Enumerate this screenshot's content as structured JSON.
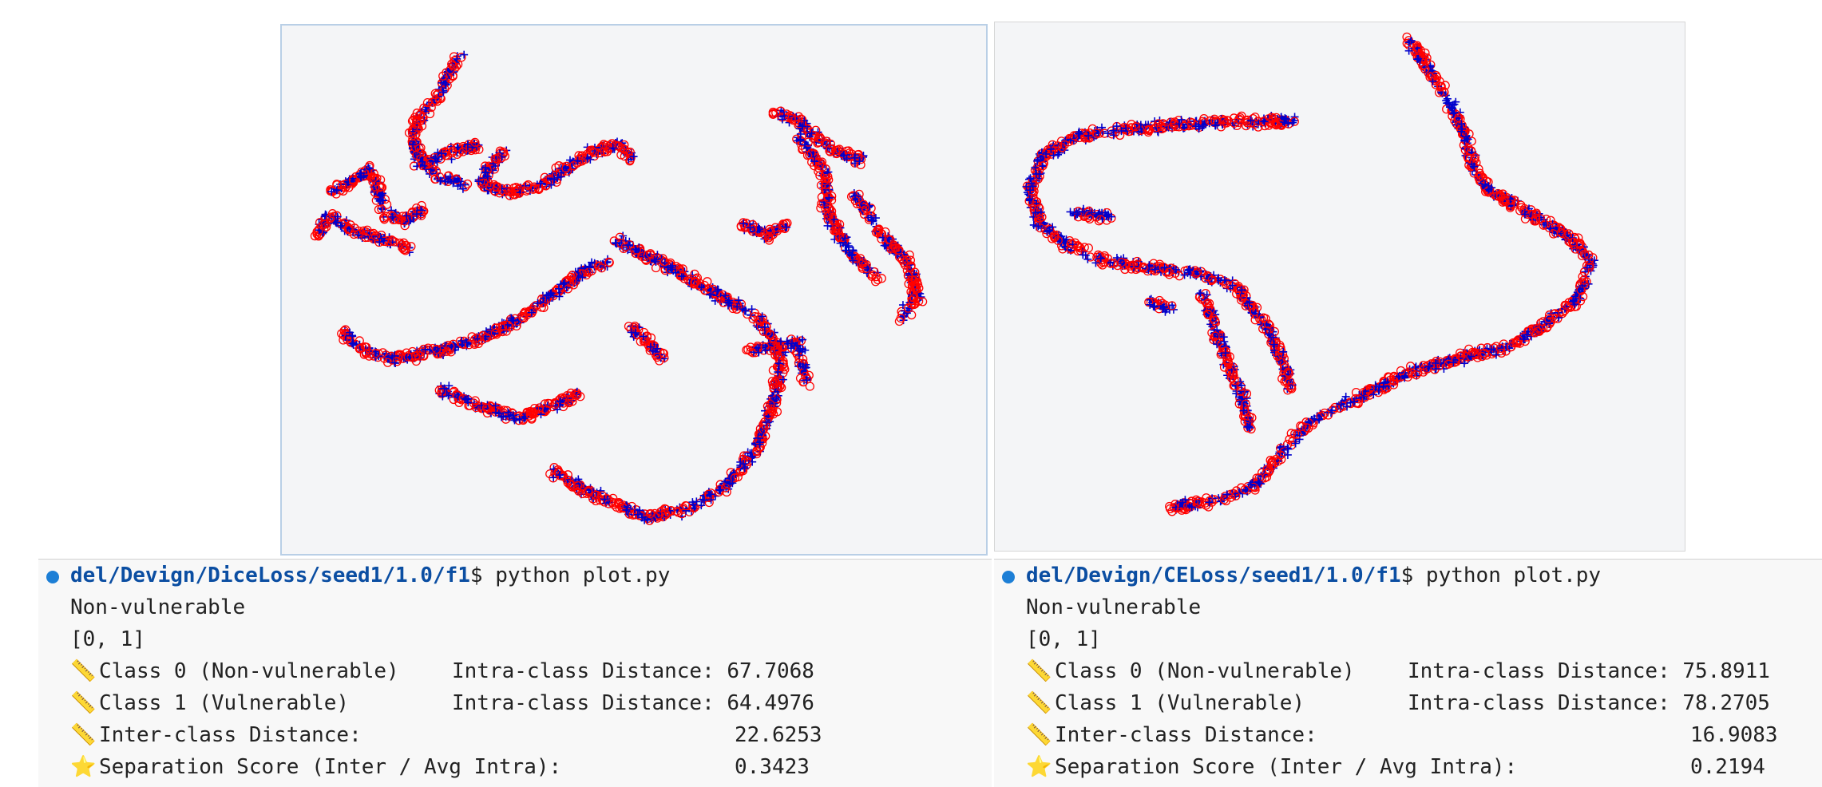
{
  "terminals": {
    "left": {
      "path": "del/Devign/DiceLoss/seed1/1.0/f1",
      "prompt": "$ ",
      "command": "python plot.py",
      "line_label": "Non-vulnerable",
      "line_list": "[0, 1]",
      "class0_label": "Class 0 (Non-vulnerable)",
      "class0_value_label": "Intra-class Distance: 67.7068",
      "class1_label": "Class 1 (Vulnerable)",
      "class1_value_label": "Intra-class Distance: 64.4976",
      "inter_label": "Inter-class Distance:",
      "inter_value": "22.6253",
      "score_label": "Separation Score (Inter / Avg Intra):",
      "score_value": "0.3423"
    },
    "right": {
      "path": "del/Devign/CELoss/seed1/1.0/f1",
      "prompt": "$ ",
      "command": "python plot.py",
      "line_label": "Non-vulnerable",
      "line_list": "[0, 1]",
      "class0_label": "Class 0 (Non-vulnerable)",
      "class0_value_label": "Intra-class Distance: 75.8911",
      "class1_label": "Class 1 (Vulnerable)",
      "class1_value_label": "Intra-class Distance: 78.2705",
      "inter_label": "Inter-class Distance:",
      "inter_value": "16.9083",
      "score_label": "Separation Score (Inter / Avg Intra):",
      "score_value": "0.2194"
    }
  },
  "icons": {
    "ruler": "ruler-icon",
    "star": "star-icon",
    "status": "status-dot-icon"
  },
  "colors": {
    "class0_marker": "#ff0000",
    "class1_marker": "#0000cc",
    "path_text": "#0b4ea2",
    "status_dot": "#1d7fd6"
  }
}
